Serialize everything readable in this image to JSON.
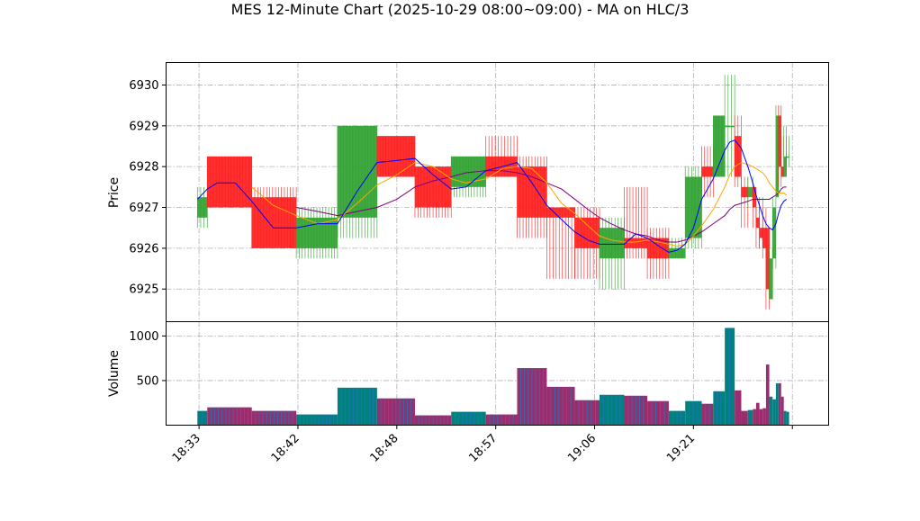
{
  "chart_data": {
    "type": "candlestick",
    "title": "MES 12-Minute Chart (2025-10-29 08:00~09:00) - MA on HLC/3",
    "price_panel": {
      "ylabel": "Price",
      "yticks": [
        6925,
        6926,
        6927,
        6928,
        6929,
        6930
      ],
      "ylim": [
        6924.2,
        6930.55
      ],
      "grid": true
    },
    "volume_panel": {
      "ylabel": "Volume",
      "yticks": [
        500,
        1000
      ],
      "ylim": [
        0,
        1160
      ],
      "grid": true
    },
    "xlim": [
      0,
      20.1
    ],
    "xticks": [
      {
        "x": 1,
        "label": "18:33"
      },
      {
        "x": 4,
        "label": "18:42"
      },
      {
        "x": 7,
        "label": "18:48"
      },
      {
        "x": 10,
        "label": "18:57"
      },
      {
        "x": 13,
        "label": "19:06"
      },
      {
        "x": 16,
        "label": "19:21"
      },
      {
        "x": 19,
        "label": ""
      }
    ],
    "colors": {
      "up": "#2ca02c",
      "down": "#ff1a1a",
      "vol_up": "#008080",
      "vol_down": "#9b2d6e",
      "vol_stripe": "#1f77b4",
      "ma_fast": "#0000ff",
      "ma_mid": "#ffa500",
      "ma_slow": "#800080"
    },
    "candles": [
      {
        "x0": 0.95,
        "x1": 1.25,
        "open": 6926.75,
        "close": 6927.25,
        "high": 6927.5,
        "low": 6926.5,
        "volume": 160
      },
      {
        "x0": 1.25,
        "x1": 2.6,
        "open": 6928.25,
        "close": 6927.0,
        "high": 6928.25,
        "low": 6927.0,
        "volume": 200
      },
      {
        "x0": 2.6,
        "x1": 3.95,
        "open": 6927.25,
        "close": 6926.0,
        "high": 6927.5,
        "low": 6926.0,
        "volume": 160
      },
      {
        "x0": 3.95,
        "x1": 5.2,
        "open": 6926.0,
        "close": 6926.75,
        "high": 6927.0,
        "low": 6925.75,
        "volume": 120
      },
      {
        "x0": 5.2,
        "x1": 6.4,
        "open": 6926.75,
        "close": 6929.0,
        "high": 6929.0,
        "low": 6926.25,
        "volume": 420
      },
      {
        "x0": 6.4,
        "x1": 7.55,
        "open": 6928.75,
        "close": 6927.75,
        "high": 6928.75,
        "low": 6927.75,
        "volume": 300
      },
      {
        "x0": 7.55,
        "x1": 8.65,
        "open": 6928.0,
        "close": 6927.0,
        "high": 6928.0,
        "low": 6926.75,
        "volume": 110
      },
      {
        "x0": 8.65,
        "x1": 9.7,
        "open": 6927.5,
        "close": 6928.25,
        "high": 6928.25,
        "low": 6927.25,
        "volume": 150
      },
      {
        "x0": 9.7,
        "x1": 10.65,
        "open": 6928.25,
        "close": 6927.75,
        "high": 6928.75,
        "low": 6927.75,
        "volume": 120
      },
      {
        "x0": 10.65,
        "x1": 11.55,
        "open": 6928.0,
        "close": 6926.75,
        "high": 6928.25,
        "low": 6926.25,
        "volume": 640
      },
      {
        "x0": 11.55,
        "x1": 12.4,
        "open": 6927.0,
        "close": 6926.75,
        "high": 6927.0,
        "low": 6925.25,
        "volume": 430
      },
      {
        "x0": 12.4,
        "x1": 13.15,
        "open": 6926.75,
        "close": 6926.0,
        "high": 6927.0,
        "low": 6925.25,
        "volume": 280
      },
      {
        "x0": 13.15,
        "x1": 13.9,
        "open": 6925.75,
        "close": 6926.5,
        "high": 6926.75,
        "low": 6925.0,
        "volume": 340
      },
      {
        "x0": 13.9,
        "x1": 14.6,
        "open": 6926.25,
        "close": 6926.0,
        "high": 6927.5,
        "low": 6925.75,
        "volume": 330
      },
      {
        "x0": 14.6,
        "x1": 15.25,
        "open": 6926.25,
        "close": 6925.75,
        "high": 6926.5,
        "low": 6925.25,
        "volume": 270
      },
      {
        "x0": 15.25,
        "x1": 15.75,
        "open": 6925.75,
        "close": 6926.0,
        "high": 6926.25,
        "low": 6925.75,
        "volume": 160
      },
      {
        "x0": 15.75,
        "x1": 16.25,
        "open": 6926.25,
        "close": 6927.75,
        "high": 6928.0,
        "low": 6926.0,
        "volume": 270
      },
      {
        "x0": 16.25,
        "x1": 16.6,
        "open": 6928.0,
        "close": 6927.75,
        "high": 6928.5,
        "low": 6927.25,
        "volume": 240
      },
      {
        "x0": 16.6,
        "x1": 16.95,
        "open": 6927.75,
        "close": 6929.25,
        "high": 6929.25,
        "low": 6927.75,
        "volume": 380
      },
      {
        "x0": 16.95,
        "x1": 17.25,
        "open": 6929.0,
        "close": 6929.0,
        "high": 6930.25,
        "low": 6927.75,
        "volume": 1090
      },
      {
        "x0": 17.25,
        "x1": 17.45,
        "open": 6928.75,
        "close": 6927.75,
        "high": 6929.25,
        "low": 6927.5,
        "volume": 390
      },
      {
        "x0": 17.45,
        "x1": 17.65,
        "open": 6927.5,
        "close": 6927.25,
        "high": 6927.75,
        "low": 6926.5,
        "volume": 160
      },
      {
        "x0": 17.65,
        "x1": 17.8,
        "open": 6927.25,
        "close": 6927.5,
        "high": 6927.75,
        "low": 6927.0,
        "volume": 170
      },
      {
        "x0": 17.8,
        "x1": 17.9,
        "open": 6927.5,
        "close": 6927.0,
        "high": 6927.5,
        "low": 6926.5,
        "volume": 180
      },
      {
        "x0": 17.9,
        "x1": 18.0,
        "open": 6926.75,
        "close": 6926.5,
        "high": 6927.0,
        "low": 6926.0,
        "volume": 250
      },
      {
        "x0": 18.0,
        "x1": 18.1,
        "open": 6926.5,
        "close": 6926.25,
        "high": 6927.25,
        "low": 6926.0,
        "volume": 180
      },
      {
        "x0": 18.1,
        "x1": 18.2,
        "open": 6926.5,
        "close": 6926.0,
        "high": 6927.0,
        "low": 6925.75,
        "volume": 190
      },
      {
        "x0": 18.2,
        "x1": 18.3,
        "open": 6926.5,
        "close": 6925.0,
        "high": 6926.5,
        "low": 6924.5,
        "volume": 680
      },
      {
        "x0": 18.3,
        "x1": 18.4,
        "open": 6924.75,
        "close": 6925.75,
        "high": 6926.0,
        "low": 6924.75,
        "volume": 320
      },
      {
        "x0": 18.4,
        "x1": 18.5,
        "open": 6925.75,
        "close": 6927.0,
        "high": 6927.25,
        "low": 6925.5,
        "volume": 290
      },
      {
        "x0": 18.5,
        "x1": 18.58,
        "open": 6927.25,
        "close": 6929.25,
        "high": 6929.5,
        "low": 6927.25,
        "volume": 470
      },
      {
        "x0": 18.58,
        "x1": 18.66,
        "open": 6929.25,
        "close": 6928.0,
        "high": 6929.5,
        "low": 6927.5,
        "volume": 470
      },
      {
        "x0": 18.66,
        "x1": 18.74,
        "open": 6928.0,
        "close": 6927.75,
        "high": 6928.75,
        "low": 6927.75,
        "volume": 320
      },
      {
        "x0": 18.74,
        "x1": 18.82,
        "open": 6927.75,
        "close": 6928.25,
        "high": 6929.0,
        "low": 6927.75,
        "volume": 160
      },
      {
        "x0": 18.82,
        "x1": 18.9,
        "open": 6928.25,
        "close": 6928.25,
        "high": 6928.75,
        "low": 6928.0,
        "volume": 150
      }
    ],
    "ma_fast": [
      [
        0.95,
        6927.2
      ],
      [
        1.25,
        6927.45
      ],
      [
        1.55,
        6927.6
      ],
      [
        2.1,
        6927.6
      ],
      [
        2.6,
        6927.15
      ],
      [
        3.25,
        6926.5
      ],
      [
        3.95,
        6926.5
      ],
      [
        4.6,
        6926.6
      ],
      [
        5.2,
        6926.6
      ],
      [
        5.8,
        6927.4
      ],
      [
        6.4,
        6928.1
      ],
      [
        7.0,
        6928.15
      ],
      [
        7.55,
        6928.2
      ],
      [
        8.1,
        6927.8
      ],
      [
        8.65,
        6927.45
      ],
      [
        9.1,
        6927.5
      ],
      [
        9.7,
        6927.9
      ],
      [
        10.2,
        6928.0
      ],
      [
        10.65,
        6928.1
      ],
      [
        11.1,
        6927.6
      ],
      [
        11.55,
        6927.05
      ],
      [
        12.0,
        6926.7
      ],
      [
        12.4,
        6926.4
      ],
      [
        12.8,
        6926.2
      ],
      [
        13.15,
        6926.1
      ],
      [
        13.5,
        6926.1
      ],
      [
        13.9,
        6926.1
      ],
      [
        14.25,
        6926.35
      ],
      [
        14.6,
        6926.25
      ],
      [
        14.95,
        6926.05
      ],
      [
        15.25,
        6925.9
      ],
      [
        15.5,
        6925.95
      ],
      [
        15.75,
        6926.1
      ],
      [
        16.0,
        6926.5
      ],
      [
        16.25,
        6927.2
      ],
      [
        16.6,
        6927.7
      ],
      [
        16.95,
        6928.4
      ],
      [
        17.1,
        6928.6
      ],
      [
        17.25,
        6928.65
      ],
      [
        17.45,
        6928.45
      ],
      [
        17.65,
        6928.0
      ],
      [
        17.8,
        6927.6
      ],
      [
        17.9,
        6927.3
      ],
      [
        18.0,
        6927.05
      ],
      [
        18.1,
        6926.8
      ],
      [
        18.2,
        6926.6
      ],
      [
        18.3,
        6926.5
      ],
      [
        18.4,
        6926.45
      ],
      [
        18.5,
        6926.6
      ],
      [
        18.58,
        6926.85
      ],
      [
        18.66,
        6927.05
      ],
      [
        18.74,
        6927.15
      ],
      [
        18.82,
        6927.2
      ]
    ],
    "ma_mid": [
      [
        2.6,
        6927.5
      ],
      [
        3.25,
        6927.05
      ],
      [
        3.95,
        6926.8
      ],
      [
        4.6,
        6926.6
      ],
      [
        5.2,
        6926.7
      ],
      [
        5.8,
        6927.1
      ],
      [
        6.4,
        6927.55
      ],
      [
        7.0,
        6927.8
      ],
      [
        7.55,
        6928.1
      ],
      [
        8.1,
        6928.0
      ],
      [
        8.65,
        6927.7
      ],
      [
        9.1,
        6927.6
      ],
      [
        9.7,
        6927.7
      ],
      [
        10.2,
        6927.95
      ],
      [
        10.65,
        6928.0
      ],
      [
        11.1,
        6927.95
      ],
      [
        11.55,
        6927.6
      ],
      [
        12.0,
        6927.1
      ],
      [
        12.4,
        6926.85
      ],
      [
        12.8,
        6926.55
      ],
      [
        13.15,
        6926.3
      ],
      [
        13.5,
        6926.2
      ],
      [
        13.9,
        6926.15
      ],
      [
        14.25,
        6926.15
      ],
      [
        14.6,
        6926.2
      ],
      [
        14.95,
        6926.15
      ],
      [
        15.25,
        6926.1
      ],
      [
        15.5,
        6926.05
      ],
      [
        15.75,
        6926.1
      ],
      [
        16.0,
        6926.3
      ],
      [
        16.25,
        6926.55
      ],
      [
        16.6,
        6926.95
      ],
      [
        16.95,
        6927.5
      ],
      [
        17.1,
        6927.8
      ],
      [
        17.25,
        6928.0
      ],
      [
        17.45,
        6928.1
      ],
      [
        17.65,
        6928.05
      ],
      [
        17.8,
        6928.0
      ],
      [
        17.9,
        6927.95
      ],
      [
        18.0,
        6927.9
      ],
      [
        18.1,
        6927.85
      ],
      [
        18.2,
        6927.75
      ],
      [
        18.3,
        6927.6
      ],
      [
        18.4,
        6927.5
      ],
      [
        18.5,
        6927.4
      ],
      [
        18.58,
        6927.35
      ],
      [
        18.66,
        6927.35
      ],
      [
        18.74,
        6927.35
      ],
      [
        18.82,
        6927.3
      ]
    ],
    "ma_slow": [
      [
        3.95,
        6927.0
      ],
      [
        4.6,
        6926.9
      ],
      [
        5.2,
        6926.8
      ],
      [
        5.8,
        6926.9
      ],
      [
        6.4,
        6927.0
      ],
      [
        7.0,
        6927.2
      ],
      [
        7.55,
        6927.5
      ],
      [
        8.1,
        6927.65
      ],
      [
        8.65,
        6927.75
      ],
      [
        9.1,
        6927.85
      ],
      [
        9.7,
        6927.9
      ],
      [
        10.2,
        6927.9
      ],
      [
        10.65,
        6927.85
      ],
      [
        11.1,
        6927.75
      ],
      [
        11.55,
        6927.6
      ],
      [
        12.0,
        6927.45
      ],
      [
        12.4,
        6927.2
      ],
      [
        12.8,
        6926.95
      ],
      [
        13.15,
        6926.75
      ],
      [
        13.5,
        6926.6
      ],
      [
        13.9,
        6926.45
      ],
      [
        14.25,
        6926.35
      ],
      [
        14.6,
        6926.3
      ],
      [
        14.95,
        6926.2
      ],
      [
        15.25,
        6926.15
      ],
      [
        15.5,
        6926.15
      ],
      [
        15.75,
        6926.2
      ],
      [
        16.0,
        6926.3
      ],
      [
        16.25,
        6926.4
      ],
      [
        16.6,
        6926.6
      ],
      [
        16.95,
        6926.8
      ],
      [
        17.1,
        6926.95
      ],
      [
        17.25,
        6927.05
      ],
      [
        17.45,
        6927.1
      ],
      [
        17.65,
        6927.15
      ],
      [
        17.8,
        6927.2
      ],
      [
        17.9,
        6927.2
      ],
      [
        18.0,
        6927.2
      ],
      [
        18.1,
        6927.2
      ],
      [
        18.2,
        6927.2
      ],
      [
        18.3,
        6927.2
      ],
      [
        18.4,
        6927.25
      ],
      [
        18.5,
        6927.3
      ],
      [
        18.58,
        6927.35
      ],
      [
        18.66,
        6927.45
      ],
      [
        18.74,
        6927.5
      ],
      [
        18.82,
        6927.5
      ]
    ]
  }
}
